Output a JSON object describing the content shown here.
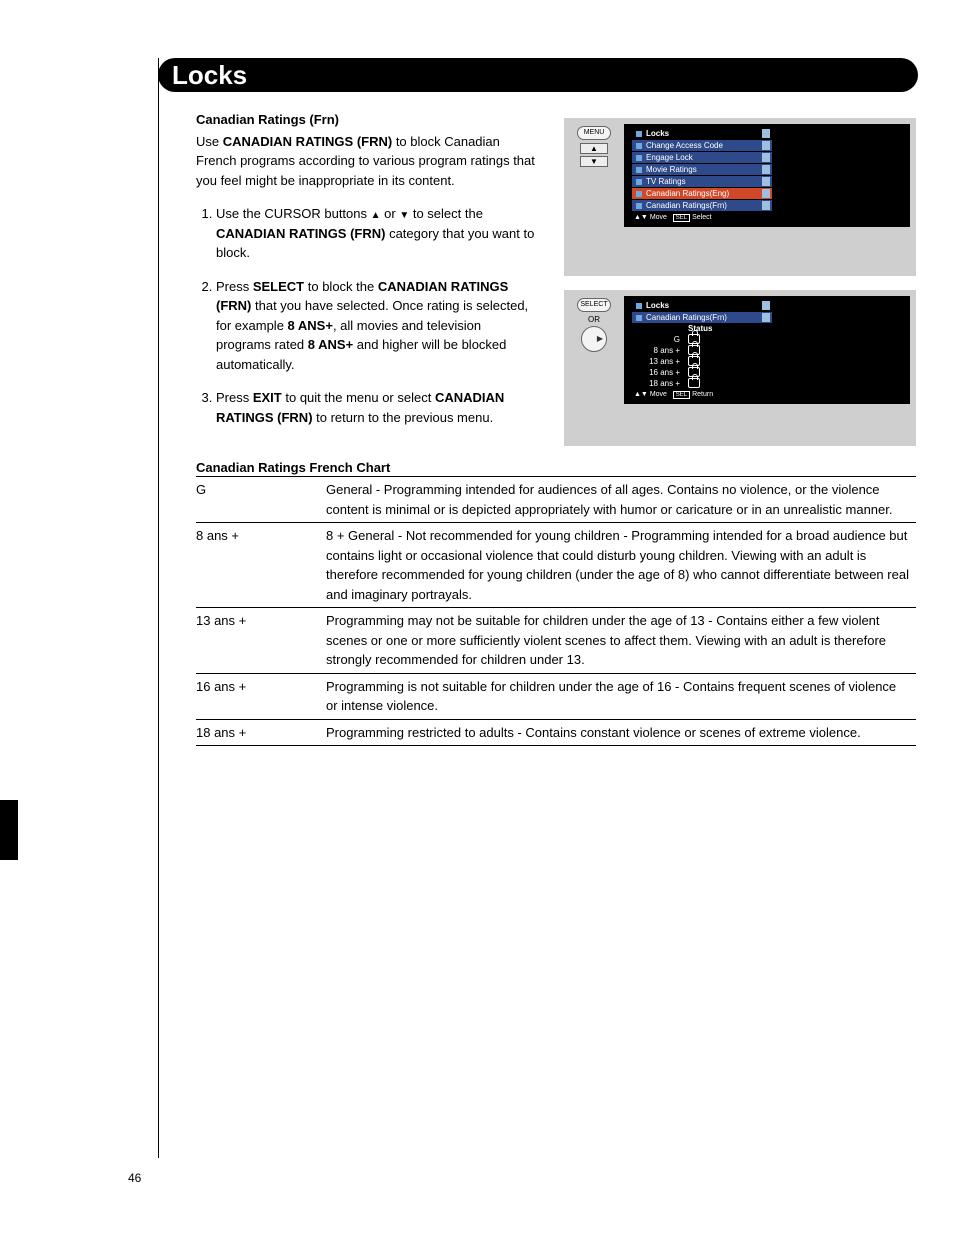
{
  "page": {
    "header": "Locks",
    "number": "46",
    "section_title": "Canadian Ratings (Frn)",
    "intro_prefix": "Use ",
    "intro_bold": "CANADIAN RATINGS (FRN)",
    "intro_suffix": " to block Canadian French programs according to various program ratings that you feel might be inappropriate in its content.",
    "steps": {
      "s1a": "Use the CURSOR buttons ",
      "s1b": " or ",
      "s1c": " to select the ",
      "s1d": "CANADIAN RATINGS (FRN)",
      "s1e": " category that you want to block.",
      "s2a": "Press ",
      "s2b": "SELECT",
      "s2c": " to block the ",
      "s2d": "CANADIAN RATINGS (FRN)",
      "s2e": " that you have selected. Once rating is selected, for example ",
      "s2f": "8 ANS+",
      "s2g": ", all movies and television programs rated ",
      "s2h": "8 ANS+",
      "s2i": " and higher will be blocked automatically.",
      "s3a": "Press ",
      "s3b": "EXIT",
      "s3c": " to quit the menu or select ",
      "s3d": "CANADIAN RATINGS (FRN)",
      "s3e": " to return to the previous menu."
    },
    "chart_title": "Canadian Ratings French Chart"
  },
  "ratings_table": {
    "rows": [
      {
        "label": "G",
        "desc": "General - Programming intended for audiences of all ages. Contains no violence, or the violence content is minimal or is depicted appropriately with humor or caricature or in an unrealistic manner."
      },
      {
        "label": "8 ans +",
        "desc": "8 + General - Not recommended for young children - Programming intended for a broad audience but contains light or occasional violence that could disturb young children. Viewing with an adult is therefore recommended for young children (under the age of 8) who cannot differentiate between real and imaginary portrayals."
      },
      {
        "label": "13 ans +",
        "desc": "Programming may not be suitable for children under the age of 13 - Contains either a few violent scenes or one or more sufficiently violent scenes to affect them. Viewing with an adult is therefore strongly recommended for children under 13."
      },
      {
        "label": "16 ans +",
        "desc": "Programming is not suitable for children under the age of 16 - Contains frequent scenes of violence or intense violence."
      },
      {
        "label": "18 ans +",
        "desc": "Programming restricted to adults - Contains constant violence or scenes of extreme violence."
      }
    ]
  },
  "osd1": {
    "remote_label": "MENU",
    "title": "Locks",
    "items": [
      "Change Access Code",
      "Engage Lock",
      "Movie Ratings",
      "TV Ratings",
      "Canadian Ratings(Eng)",
      "Canadian Ratings(Frn)"
    ],
    "foot_move": "Move",
    "foot_sel": "SEL",
    "foot_select": "Select"
  },
  "osd2": {
    "remote_label": "SELECT",
    "remote_or": "OR",
    "title": "Locks",
    "sub": "Canadian Ratings(Frn)",
    "status_hdr": "Status",
    "items": [
      "G",
      "8 ans +",
      "13 ans +",
      "16 ans +",
      "18 ans +"
    ],
    "foot_move": "Move",
    "foot_sel": "SEL",
    "foot_return": "Return"
  },
  "colors": {
    "header_bg": "#000000",
    "header_fg": "#ffffff",
    "osd_bg": "#cfcfcf",
    "menu_row_bg": "#2e4a8a",
    "menu_highlight_bg": "#d04828",
    "body_text": "#000000"
  }
}
